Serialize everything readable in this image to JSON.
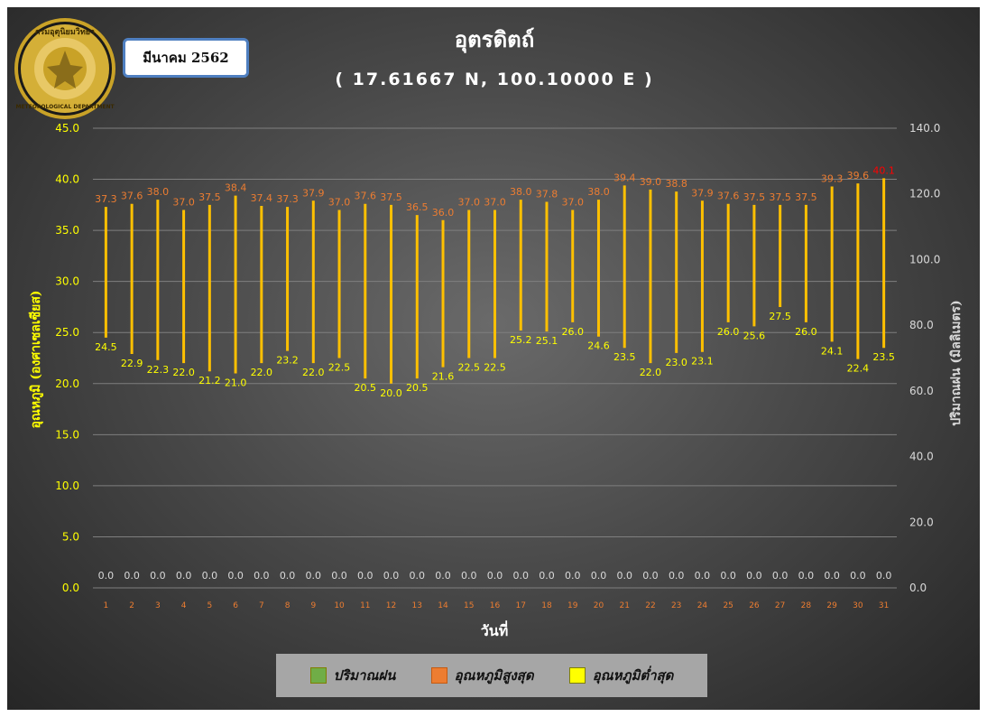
{
  "header": {
    "title": "อุตรดิตถ์",
    "subtitle": "( 17.61667 N, 100.10000 E )",
    "period": "มีนาคม 2562",
    "logo_text": "กรมอุตุนิยมวิทยา METEOROLOGICAL DEPARTMENT"
  },
  "legend": {
    "items": [
      {
        "label": "ปริมาณฝน",
        "color": "#70ad47"
      },
      {
        "label": "อุณหภูมิสูงสุด",
        "color": "#ed7d31"
      },
      {
        "label": "อุณหภูมิต่ำสุด",
        "color": "#ffff00"
      }
    ]
  },
  "chart_data": {
    "type": "bar",
    "xlabel": "วันที่",
    "ylabel_left": "อุณหภูมิ (องศาเซลเซียส)",
    "ylabel_right": "ปริมาณฝน (มิลลิเมตร)",
    "ylim_left": [
      0,
      45
    ],
    "ylim_right": [
      0,
      140
    ],
    "yticks_left": [
      "0.0",
      "5.0",
      "10.0",
      "15.0",
      "20.0",
      "25.0",
      "30.0",
      "35.0",
      "40.0",
      "45.0"
    ],
    "yticks_right": [
      "0.0",
      "20.0",
      "40.0",
      "60.0",
      "80.0",
      "100.0",
      "120.0",
      "140.0"
    ],
    "categories": [
      1,
      2,
      3,
      4,
      5,
      6,
      7,
      8,
      9,
      10,
      11,
      12,
      13,
      14,
      15,
      16,
      17,
      18,
      19,
      20,
      21,
      22,
      23,
      24,
      25,
      26,
      27,
      28,
      29,
      30,
      31
    ],
    "max_temp": [
      37.3,
      37.6,
      38.0,
      37.0,
      37.5,
      38.4,
      37.4,
      37.3,
      37.9,
      37.0,
      37.6,
      37.5,
      36.5,
      36.0,
      37.0,
      37.0,
      38.0,
      37.8,
      37.0,
      38.0,
      39.4,
      39.0,
      38.8,
      37.9,
      37.6,
      37.5,
      37.5,
      37.5,
      39.3,
      39.6,
      40.1
    ],
    "min_temp": [
      24.5,
      22.9,
      22.3,
      22.0,
      21.2,
      21.0,
      22.0,
      23.2,
      22.0,
      22.5,
      20.5,
      20.0,
      20.5,
      21.6,
      22.5,
      22.5,
      25.2,
      25.1,
      26.0,
      24.6,
      23.5,
      22.0,
      23.0,
      23.1,
      26.0,
      25.6,
      27.5,
      26.0,
      24.1,
      22.4,
      23.5
    ],
    "rain": [
      0.0,
      0.0,
      0.0,
      0.0,
      0.0,
      0.0,
      0.0,
      0.0,
      0.0,
      0.0,
      0.0,
      0.0,
      0.0,
      0.0,
      0.0,
      0.0,
      0.0,
      0.0,
      0.0,
      0.0,
      0.0,
      0.0,
      0.0,
      0.0,
      0.0,
      0.0,
      0.0,
      0.0,
      0.0,
      0.0,
      0.0
    ],
    "colors": {
      "range_bar": "#ffc000",
      "max_label": "#ed7d31",
      "max_label_highlight": "#ff0000",
      "min_label": "#ffff00",
      "rain_label": "#d9d9d9",
      "left_axis": "#ffff00",
      "right_axis": "#d9d9d9",
      "x_tick": "#ed7d31",
      "grid": "#7f7f7f"
    }
  }
}
